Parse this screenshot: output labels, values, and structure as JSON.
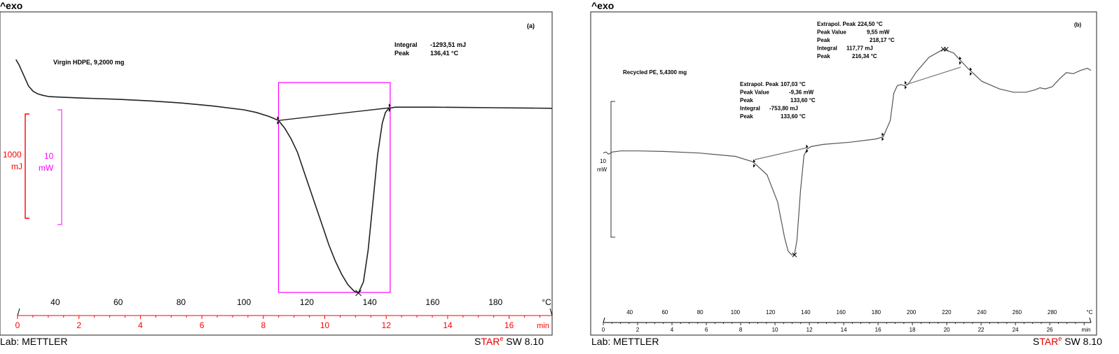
{
  "chart_data": [
    {
      "id": "a",
      "type": "line",
      "panel_label": "(a)",
      "header": "^exo",
      "footer_left": "Lab: METTLER",
      "footer_right": {
        "brand_s": "S",
        "brand_tar": "TAR",
        "brand_e": "e",
        "brand_rest": " SW 8.10"
      },
      "sample": "Virgin HDPE, 9,2000 mg",
      "annotation": [
        {
          "label": "Integral",
          "value": "-1293,51 mJ"
        },
        {
          "label": "Peak",
          "value": "136,41 °C"
        }
      ],
      "scale_bars": [
        {
          "value": "1000",
          "unit": "mJ",
          "color": "#ff0000"
        },
        {
          "value": "10",
          "unit": "mW",
          "color": "#ff00ff"
        }
      ],
      "x_temperature": {
        "unit": "°C",
        "ticks": [
          40,
          60,
          80,
          100,
          120,
          140,
          160,
          180
        ],
        "range": [
          28,
          198
        ]
      },
      "x_time": {
        "unit": "min",
        "ticks": [
          0,
          2,
          4,
          6,
          8,
          10,
          12,
          14,
          16
        ],
        "range": [
          0,
          17.4
        ],
        "color": "#ff0000"
      },
      "y_range": [
        -0.86,
        0.15
      ],
      "series": [
        {
          "x": [
            27.5,
            28.5,
            30,
            31.5,
            33,
            34.5,
            36,
            38,
            42,
            50,
            60,
            70,
            80,
            90,
            100,
            104,
            108,
            111,
            113,
            115,
            117,
            119,
            121,
            123,
            125,
            127,
            129,
            131,
            133,
            135,
            136.4,
            138,
            139.5,
            141,
            142.5,
            144,
            145,
            146,
            148,
            150,
            160,
            170,
            180,
            190,
            198
          ],
          "y": [
            0.02,
            0.0,
            -0.04,
            -0.08,
            -0.1,
            -0.11,
            -0.115,
            -0.12,
            -0.122,
            -0.126,
            -0.13,
            -0.136,
            -0.144,
            -0.155,
            -0.17,
            -0.18,
            -0.195,
            -0.21,
            -0.24,
            -0.28,
            -0.33,
            -0.4,
            -0.47,
            -0.54,
            -0.61,
            -0.68,
            -0.74,
            -0.79,
            -0.83,
            -0.855,
            -0.862,
            -0.82,
            -0.7,
            -0.52,
            -0.34,
            -0.22,
            -0.18,
            -0.165,
            -0.16,
            -0.16,
            -0.16,
            -0.161,
            -0.162,
            -0.163,
            -0.164
          ]
        }
      ],
      "baseline": {
        "x": [
          111,
          146.5
        ],
        "y": [
          -0.21,
          -0.162
        ]
      },
      "peak_marker": {
        "x": 136.41,
        "y": -0.862
      },
      "integration_box": {
        "x": [
          111,
          146.5
        ]
      },
      "x_marks": [
        111,
        146.5
      ]
    },
    {
      "id": "b",
      "type": "line",
      "panel_label": "(b)",
      "header": "^exo",
      "footer_left": "Lab: METTLER",
      "footer_right": {
        "brand_s": "S",
        "brand_tar": "TAR",
        "brand_e": "e",
        "brand_rest": " SW 8.10"
      },
      "sample": "Recycled PE, 5,4300 mg",
      "annotation_high": [
        {
          "label": "Extrapol. Peak",
          "value": "224,50 °C"
        },
        {
          "label": "Peak Value",
          "value": "9,55 mW"
        },
        {
          "label": "Peak",
          "value": "218,17 °C"
        },
        {
          "label": "Integral",
          "value": "117,77 mJ"
        },
        {
          "label": "Peak",
          "value": "216,34 °C"
        }
      ],
      "annotation_low": [
        {
          "label": "Extrapol. Peak",
          "value": "107,03 °C"
        },
        {
          "label": "Peak Value",
          "value": "-9,36 mW"
        },
        {
          "label": "Peak",
          "value": "133,60 °C"
        },
        {
          "label": "Integral",
          "value": "-753,80 mJ"
        },
        {
          "label": "Peak",
          "value": "133,60 °C"
        }
      ],
      "scale_bar": {
        "value": "10",
        "unit": "mW"
      },
      "x_temperature": {
        "unit": "°C",
        "ticks": [
          40,
          60,
          80,
          100,
          120,
          140,
          160,
          180,
          200,
          220,
          240,
          260,
          280
        ],
        "range": [
          25,
          302
        ]
      },
      "x_time": {
        "unit": "min",
        "ticks": [
          0,
          2,
          4,
          6,
          8,
          10,
          12,
          14,
          16,
          18,
          20,
          22,
          24,
          26
        ],
        "range": [
          0,
          28.4
        ]
      },
      "y_range": [
        -13,
        10.6
      ],
      "series": [
        {
          "x": [
            25,
            26.5,
            28,
            30,
            35,
            45,
            60,
            80,
            100,
            110,
            118,
            124,
            128,
            130,
            132,
            133.6,
            135,
            137,
            139,
            141,
            143,
            150,
            165,
            180,
            184,
            188,
            190,
            192,
            194,
            196,
            198,
            203,
            210,
            218.17,
            224,
            232,
            240,
            250,
            258,
            265,
            270,
            273,
            276,
            280,
            284,
            288,
            292,
            296,
            300,
            302
          ],
          "y": [
            0,
            0.1,
            -0.1,
            0.1,
            0.2,
            0.2,
            0.15,
            0,
            -0.3,
            -0.8,
            -2.0,
            -4.5,
            -7.8,
            -9.0,
            -9.36,
            -9.3,
            -8.0,
            -3.5,
            -0.2,
            0.4,
            0.6,
            0.8,
            1.0,
            1.3,
            1.5,
            3.0,
            5.5,
            6.2,
            6.3,
            6.2,
            6.3,
            7.5,
            8.8,
            9.55,
            9.2,
            7.8,
            6.6,
            5.9,
            5.6,
            5.6,
            5.8,
            6.0,
            5.9,
            6.1,
            6.8,
            7.4,
            7.3,
            7.6,
            7.8,
            7.6
          ]
        }
      ],
      "baselines": [
        {
          "x": [
            111,
            141
          ],
          "y": [
            -0.6,
            0.5
          ]
        },
        {
          "x": [
            197,
            228
          ],
          "y": [
            6.3,
            7.9
          ]
        }
      ],
      "peak_markers": [
        {
          "x": 133.6,
          "y": -9.36
        },
        {
          "x": 218.17,
          "y": 9.55
        }
      ],
      "x_marks": [
        111,
        141,
        184,
        197,
        228,
        234
      ]
    }
  ]
}
